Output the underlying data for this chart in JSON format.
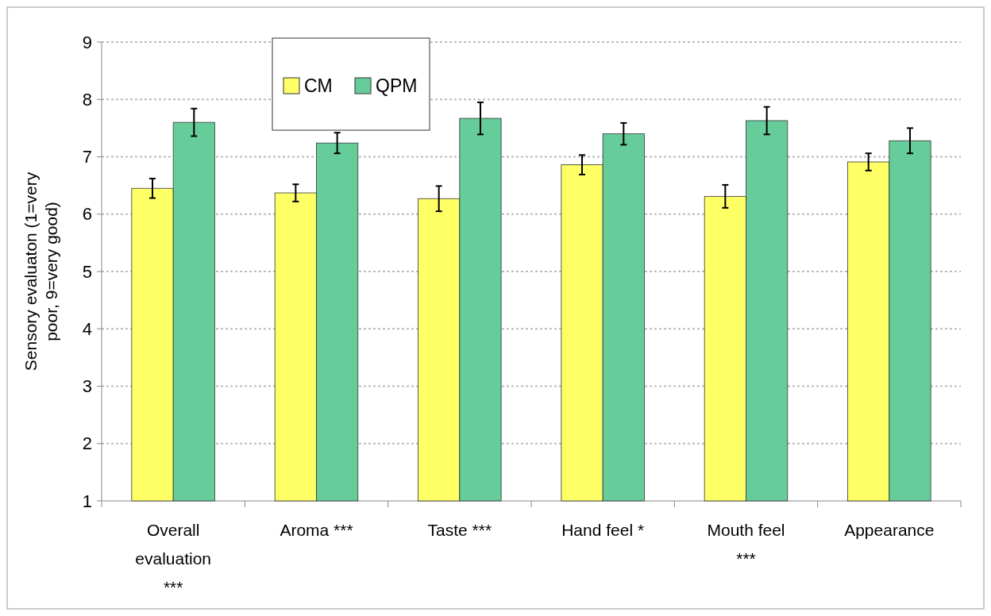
{
  "chart_data": {
    "type": "bar",
    "ylabel": "Sensory evaluaton (1=very poor, 9=very good)",
    "categories": [
      "Overall evaluation ***",
      "Aroma ***",
      "Taste ***",
      "Hand feel *",
      "Mouth feel ***",
      "Appearance"
    ],
    "series": [
      {
        "name": "CM",
        "color": "#ffff66",
        "values": [
          6.45,
          6.37,
          6.27,
          6.86,
          6.31,
          6.91
        ],
        "errors": [
          0.17,
          0.15,
          0.22,
          0.17,
          0.2,
          0.15
        ]
      },
      {
        "name": "QPM",
        "color": "#66cc99",
        "values": [
          7.6,
          7.24,
          7.67,
          7.4,
          7.63,
          7.28
        ],
        "errors": [
          0.24,
          0.18,
          0.28,
          0.19,
          0.24,
          0.22
        ]
      }
    ],
    "ylim": [
      1,
      9
    ],
    "yticks": [
      1,
      2,
      3,
      4,
      5,
      6,
      7,
      8,
      9
    ],
    "grid": "y",
    "legend": "top left"
  }
}
